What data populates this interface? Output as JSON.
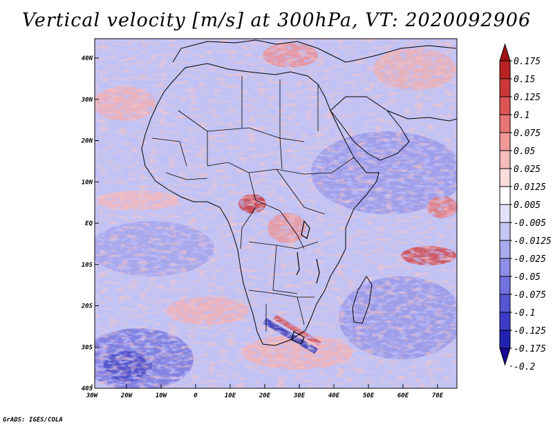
{
  "title": "Vertical velocity [m/s] at 300hPa, VT: 2020092906",
  "credit": "GrADS: IGES/COLA",
  "map": {
    "region": "Africa",
    "lon_labels": [
      "30W",
      "20W",
      "10W",
      "0",
      "10E",
      "20E",
      "30E",
      "40E",
      "50E",
      "60E",
      "70E"
    ],
    "lat_labels": [
      "40N",
      "30N",
      "20N",
      "10N",
      "EQ",
      "10S",
      "20S",
      "30S",
      "40S"
    ]
  },
  "colorbar": {
    "levels": [
      "0.175",
      "0.15",
      "0.125",
      "0.1",
      "0.075",
      "0.05",
      "0.025",
      "0.0125",
      "0.005",
      "-0.005",
      "-0.0125",
      "-0.025",
      "-0.05",
      "-0.075",
      "-0.1",
      "-0.125",
      "-0.175",
      "-0.2"
    ],
    "colors": [
      "#9e1414",
      "#b82222",
      "#cc3838",
      "#dc5454",
      "#e87474",
      "#f09898",
      "#f6bcbc",
      "#fbdcdc",
      "#ffffff",
      "#e2e2fa",
      "#c6c6f4",
      "#aaaaee",
      "#8e8ee6",
      "#7272de",
      "#5656d4",
      "#3c3cc8",
      "#2222b0",
      "#140a96"
    ]
  }
}
